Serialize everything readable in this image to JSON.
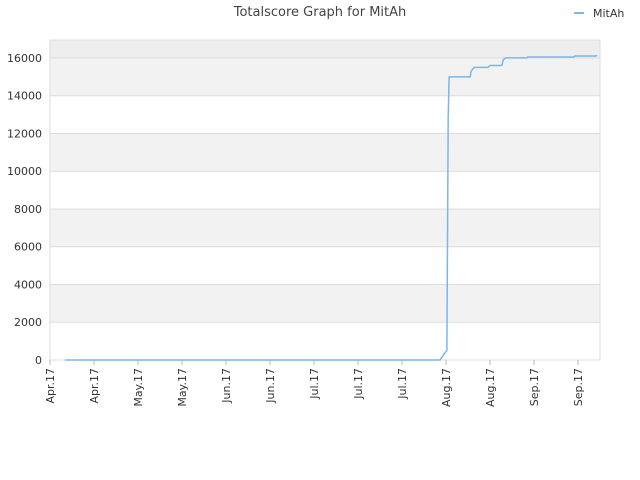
{
  "chart_data": {
    "type": "line",
    "title": "Totalscore Graph for MitAh",
    "x": [
      0.34,
      8.86,
      8.91,
      8.98,
      9.02,
      9.05,
      9.07,
      9.55,
      9.57,
      9.64,
      9.95,
      10.0,
      10.27,
      10.3,
      10.36,
      10.84,
      10.86,
      11.91,
      11.93,
      12.41,
      12.43
    ],
    "series": [
      {
        "name": "MitAh",
        "color": "#7cb5ec",
        "values": [
          0,
          0,
          150,
          400,
          500,
          12800,
          15000,
          15000,
          15300,
          15500,
          15500,
          15600,
          15600,
          15900,
          16000,
          16000,
          16050,
          16050,
          16100,
          16100,
          16150
        ]
      }
    ],
    "xlim": [
      0,
      12.5
    ],
    "xticks": [
      {
        "value": 0,
        "label": "Apr.17"
      },
      {
        "value": 1,
        "label": "Apr.17"
      },
      {
        "value": 2,
        "label": "May.17"
      },
      {
        "value": 3,
        "label": "May.17"
      },
      {
        "value": 4,
        "label": "Jun.17"
      },
      {
        "value": 5,
        "label": "Jun.17"
      },
      {
        "value": 6,
        "label": "Jul.17"
      },
      {
        "value": 7,
        "label": "Jul.17"
      },
      {
        "value": 8,
        "label": "Jul.17"
      },
      {
        "value": 9,
        "label": "Aug.17"
      },
      {
        "value": 10,
        "label": "Aug.17"
      },
      {
        "value": 11,
        "label": "Sep.17"
      },
      {
        "value": 12,
        "label": "Sep.17"
      }
    ],
    "ylim": [
      0,
      16950
    ],
    "yticks": [
      0,
      2000,
      4000,
      6000,
      8000,
      10000,
      12000,
      14000,
      16000
    ],
    "grid": true,
    "legend": "top-right"
  }
}
